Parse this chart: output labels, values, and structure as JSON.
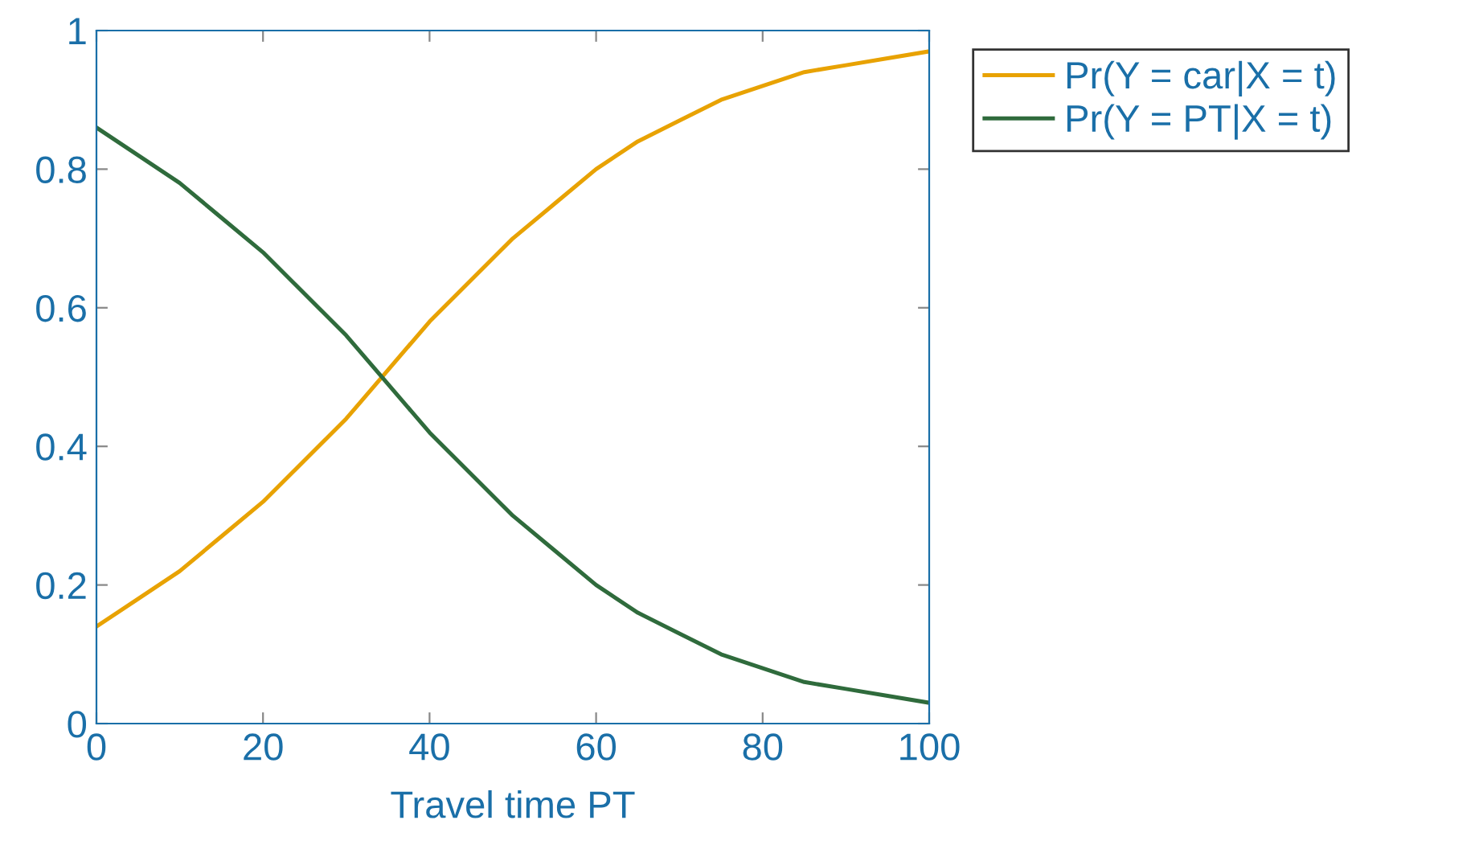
{
  "chart_data": {
    "type": "line",
    "xlabel": "Travel time PT",
    "x": [
      0,
      5,
      10,
      15,
      20,
      25,
      30,
      35,
      40,
      45,
      50,
      55,
      60,
      65,
      70,
      75,
      80,
      85,
      90,
      95,
      100
    ],
    "series": [
      {
        "name": "Pr(Y = car|X = t)",
        "color": "#e8a202",
        "values": [
          0.14,
          0.18,
          0.22,
          0.27,
          0.32,
          0.38,
          0.44,
          0.51,
          0.58,
          0.64,
          0.7,
          0.75,
          0.8,
          0.84,
          0.87,
          0.9,
          0.92,
          0.94,
          0.95,
          0.96,
          0.97
        ]
      },
      {
        "name": "Pr(Y = PT|X = t)",
        "color": "#2f6b3c",
        "values": [
          0.86,
          0.82,
          0.78,
          0.73,
          0.68,
          0.62,
          0.56,
          0.49,
          0.42,
          0.36,
          0.3,
          0.25,
          0.2,
          0.16,
          0.13,
          0.1,
          0.08,
          0.06,
          0.05,
          0.04,
          0.03
        ]
      }
    ],
    "xlim": [
      0,
      100
    ],
    "xticks": [
      0,
      20,
      40,
      60,
      80,
      100
    ],
    "ylim": [
      0,
      1
    ],
    "yticks": [
      0,
      0.2,
      0.4,
      0.6,
      0.8,
      1
    ],
    "grid": false,
    "legend": "top right",
    "marker": "none",
    "line_style": "solid"
  }
}
